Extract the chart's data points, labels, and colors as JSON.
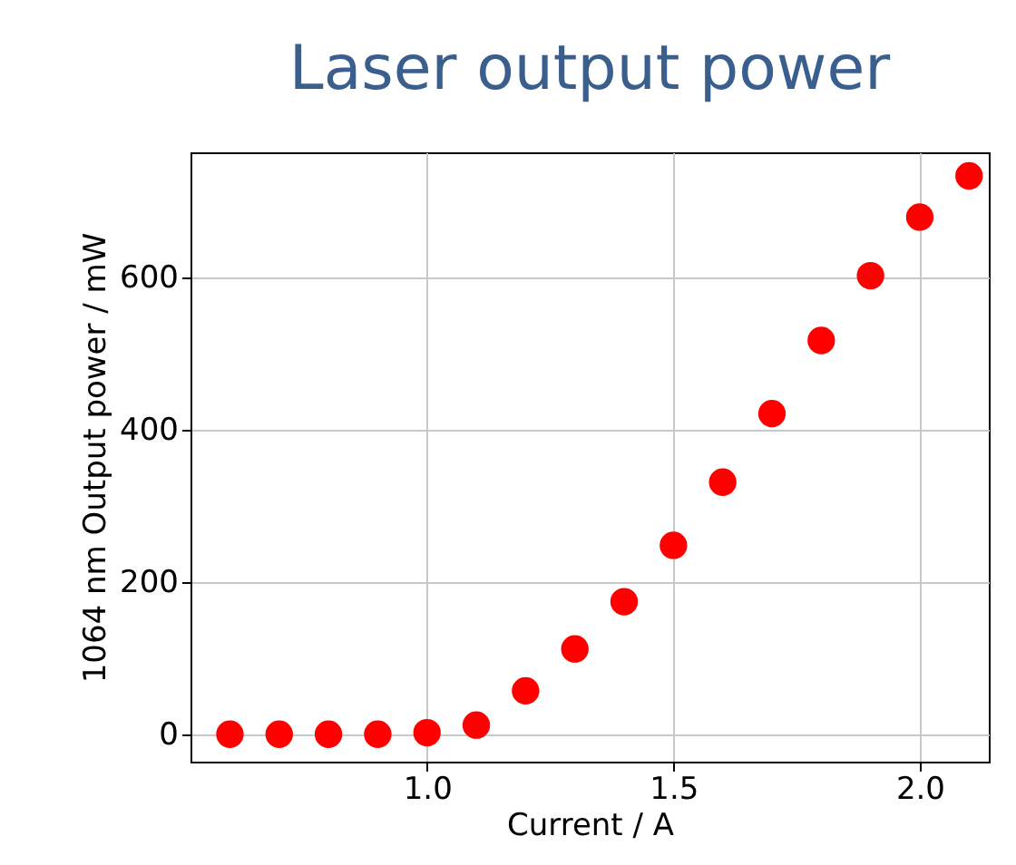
{
  "chart_data": {
    "type": "scatter",
    "title": "Laser output power",
    "xlabel": "Current / A",
    "ylabel": "1064 nm Output power / mW",
    "x": [
      0.6,
      0.7,
      0.8,
      0.9,
      1.0,
      1.1,
      1.2,
      1.3,
      1.4,
      1.5,
      1.6,
      1.7,
      1.8,
      1.9,
      2.0,
      2.1
    ],
    "series": [
      {
        "color": "#ff0000",
        "values": [
          0,
          0,
          0,
          0,
          2,
          12,
          57,
          112,
          174,
          248,
          331,
          421,
          517,
          602,
          679,
          733
        ]
      }
    ],
    "xlim": [
      0.52,
      2.14
    ],
    "xticks": [
      {
        "value": 1.0,
        "label": "1.0"
      },
      {
        "value": 1.5,
        "label": "1.5"
      },
      {
        "value": 2.0,
        "label": "2.0"
      }
    ],
    "ylim": [
      -36,
      764
    ],
    "yticks": [
      0,
      200,
      400,
      600
    ],
    "grid": true,
    "marker": "circle"
  }
}
